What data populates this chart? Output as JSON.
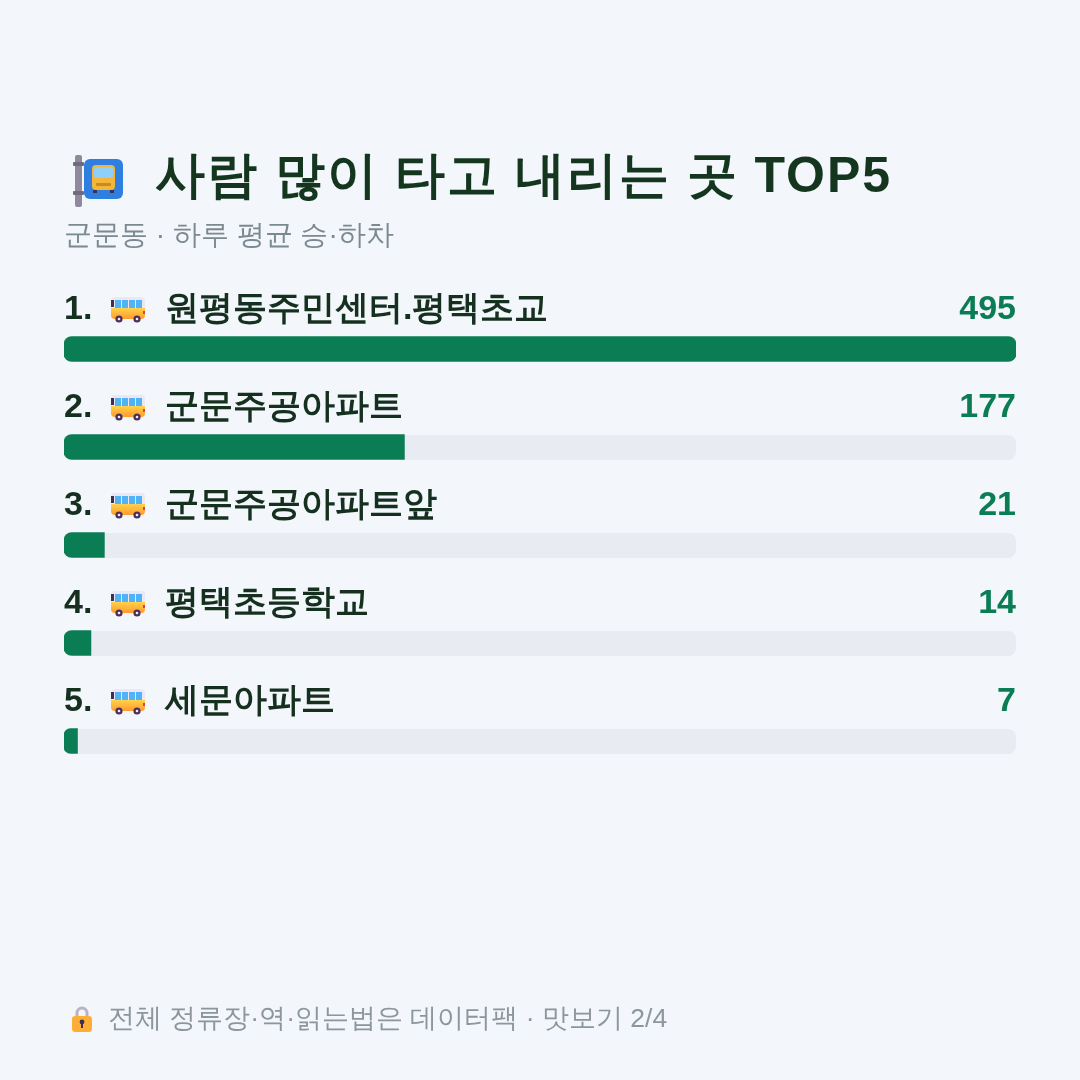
{
  "chart_data": {
    "type": "bar",
    "orientation": "horizontal",
    "title": "사람 많이 타고 내리는 곳 TOP5",
    "subtitle": "군문동 · 하루 평균 승·하차",
    "categories": [
      "1. 원평동주민센터.평택초교",
      "2. 군문주공아파트",
      "3. 군문주공아파트앞",
      "4. 평택초등학교",
      "5. 세문아파트"
    ],
    "values": [
      495,
      177,
      21,
      14,
      7
    ],
    "color": "#0b7d55",
    "xlim": [
      0,
      495
    ],
    "tick_labels": "y",
    "data_labels": true,
    "annotations": [
      "전체 정류장·역·읽는법은 데이터팩 · 맛보기 2/4"
    ]
  }
}
